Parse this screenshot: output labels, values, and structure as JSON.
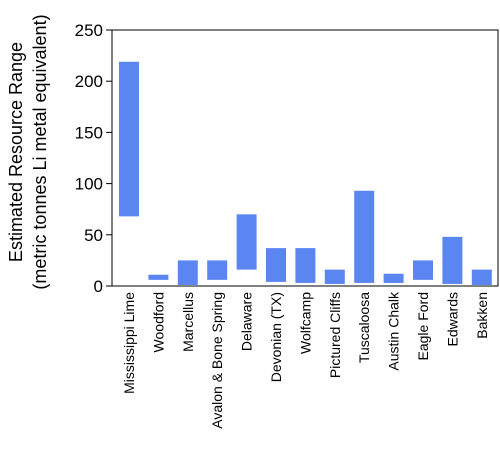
{
  "chart_data": {
    "type": "bar",
    "subtype": "floating-range",
    "ylabel_line1": "Estimated Resource Range",
    "ylabel_line2": "(metric tonnes Li metal equivalent)",
    "ylim": [
      0,
      250
    ],
    "yticks": [
      0,
      50,
      100,
      150,
      200,
      250
    ],
    "grid": false,
    "bar_color": "#5b86f2",
    "categories": [
      "Mississippi Lime",
      "Woodford",
      "Marcellus",
      "Avalon & Bone Spring",
      "Delaware",
      "Devonian (TX)",
      "Wolfcamp",
      "Pictured Cliffs",
      "Tuscaloosa",
      "Austin Chalk",
      "Eagle Ford",
      "Edwards",
      "Bakken"
    ],
    "ranges": [
      [
        68,
        219
      ],
      [
        6,
        11
      ],
      [
        1,
        25
      ],
      [
        6,
        25
      ],
      [
        16,
        70
      ],
      [
        4,
        37
      ],
      [
        3,
        37
      ],
      [
        2,
        16
      ],
      [
        3,
        93
      ],
      [
        3,
        12
      ],
      [
        6,
        25
      ],
      [
        2,
        48
      ],
      [
        1,
        16
      ]
    ]
  }
}
